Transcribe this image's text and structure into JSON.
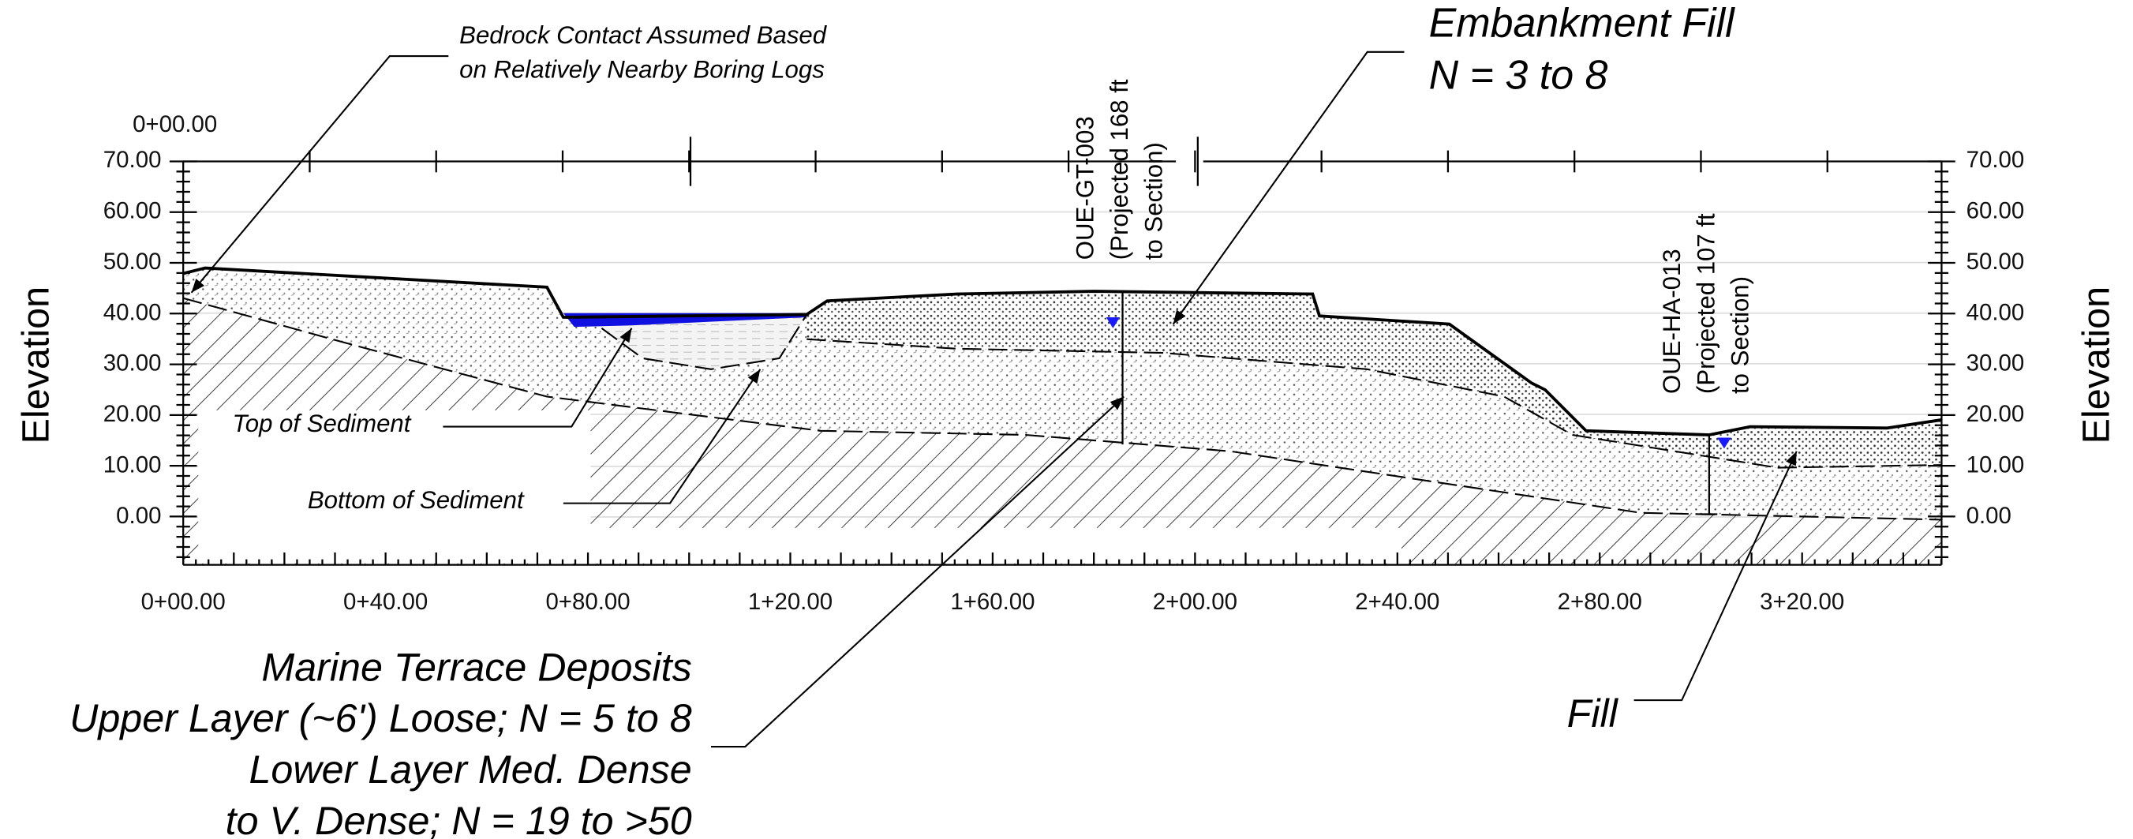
{
  "annotations": {
    "bedrock": [
      "Bedrock Contact Assumed Based",
      "on Relatively Nearby Boring Logs"
    ],
    "embankment": [
      "Embankment Fill",
      "N = 3 to 8"
    ],
    "marine": [
      "Marine Terrace Deposits",
      "Upper Layer (~6') Loose; N = 5 to 8",
      "Lower Layer Med. Dense",
      "to V. Dense; N = 19 to >50"
    ],
    "fill": "Fill",
    "top_sediment": "Top of Sediment",
    "bottom_sediment": "Bottom of Sediment"
  },
  "borings": [
    {
      "lines": [
        "OUE-GT-003",
        "(Projected 168 ft",
        "to Section)"
      ]
    },
    {
      "lines": [
        "OUE-HA-013",
        "(Projected 107 ft",
        "to Section)"
      ]
    }
  ],
  "axis": {
    "label": "Elevation",
    "top_station": "0+00.00",
    "elevations": [
      "70.00",
      "60.00",
      "50.00",
      "40.00",
      "30.00",
      "20.00",
      "10.00",
      "0.00"
    ],
    "stations": [
      "0+00.00",
      "0+40.00",
      "0+80.00",
      "1+20.00",
      "1+60.00",
      "2+00.00",
      "2+40.00",
      "2+80.00",
      "3+20.00"
    ]
  }
}
